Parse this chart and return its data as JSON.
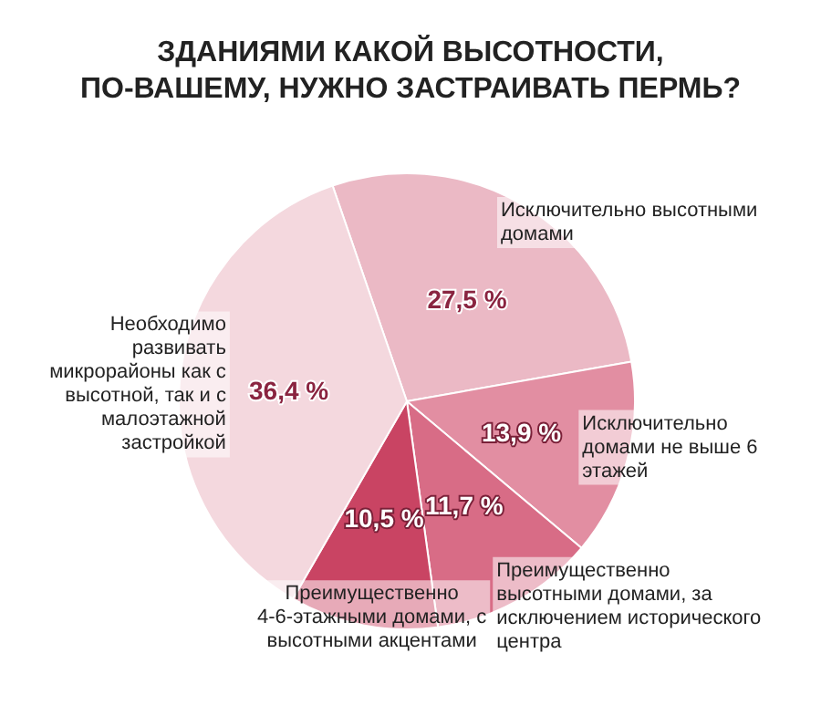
{
  "chart_data": {
    "type": "pie",
    "title": "ЗДАНИЯМИ КАКОЙ ВЫСОТНОСТИ,\nПО-ВАШЕМУ, НУЖНО ЗАСТРАИВАТЬ ПЕРМЬ?",
    "categories": [
      "Исключительно высотными домами",
      "Исключительно домами не выше 6 этажей",
      "Преимущественно высотными домами, за исключением исторического центра",
      "Преимущественно 4-6-этажными домами, с высотными акцентами",
      "Необходимо развивать микрорайоны как с высотной, так и с малоэтажной застройкой"
    ],
    "values": [
      27.5,
      13.9,
      11.7,
      10.5,
      36.4
    ],
    "colors": [
      "#ebb9c5",
      "#e28ea2",
      "#d86c86",
      "#c94463",
      "#f4d8de"
    ],
    "value_labels": [
      "27,5 %",
      "13,9 %",
      "11,7 %",
      "10,5 %",
      "36,4 %"
    ],
    "legend": false
  }
}
